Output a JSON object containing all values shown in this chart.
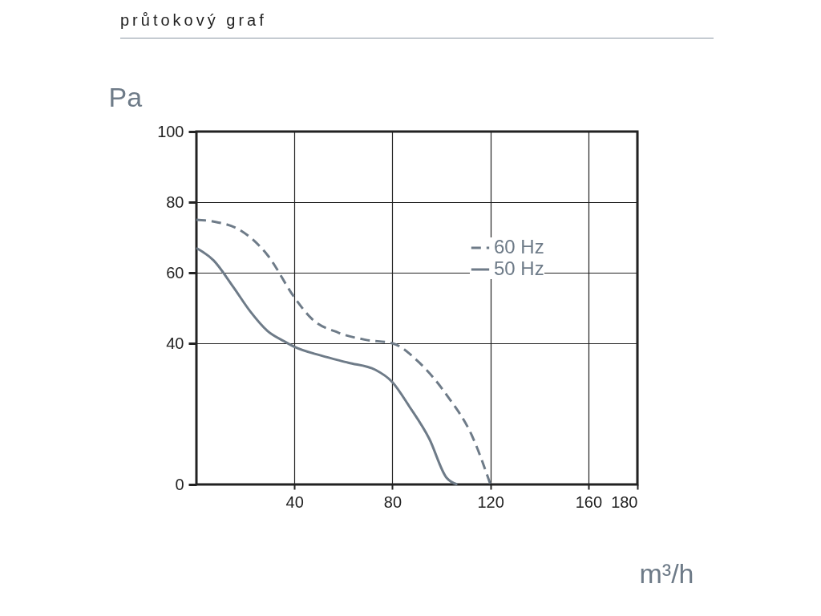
{
  "chart_data": {
    "type": "line",
    "title": "průtokový graf",
    "xlabel": "m³/h",
    "ylabel": "Pa",
    "xlim": [
      0,
      180
    ],
    "xticks": [
      40,
      80,
      120,
      160,
      180
    ],
    "ylim": [
      0,
      100
    ],
    "yticks": [
      0,
      40,
      60,
      80,
      100
    ],
    "grid": true,
    "legend": "right",
    "series": [
      {
        "name": "60 Hz",
        "color": "#6e7b88",
        "line_style": "dashed",
        "x": [
          0,
          7,
          18,
          29,
          40,
          47,
          58,
          69,
          80,
          91,
          102,
          113,
          120
        ],
        "values": [
          75,
          74.5,
          72,
          65,
          53,
          47,
          43,
          41,
          40,
          34.5,
          25.5,
          13,
          0
        ]
      },
      {
        "name": "50 Hz",
        "color": "#6e7b88",
        "line_style": "solid",
        "x": [
          0,
          7,
          15,
          22,
          29,
          36,
          40,
          51,
          62,
          73,
          80,
          87,
          95,
          102,
          106.5
        ],
        "values": [
          67,
          63.5,
          56,
          49,
          43.5,
          40.5,
          39,
          36.5,
          34.5,
          32.5,
          29,
          22,
          13,
          2,
          0
        ]
      }
    ]
  }
}
